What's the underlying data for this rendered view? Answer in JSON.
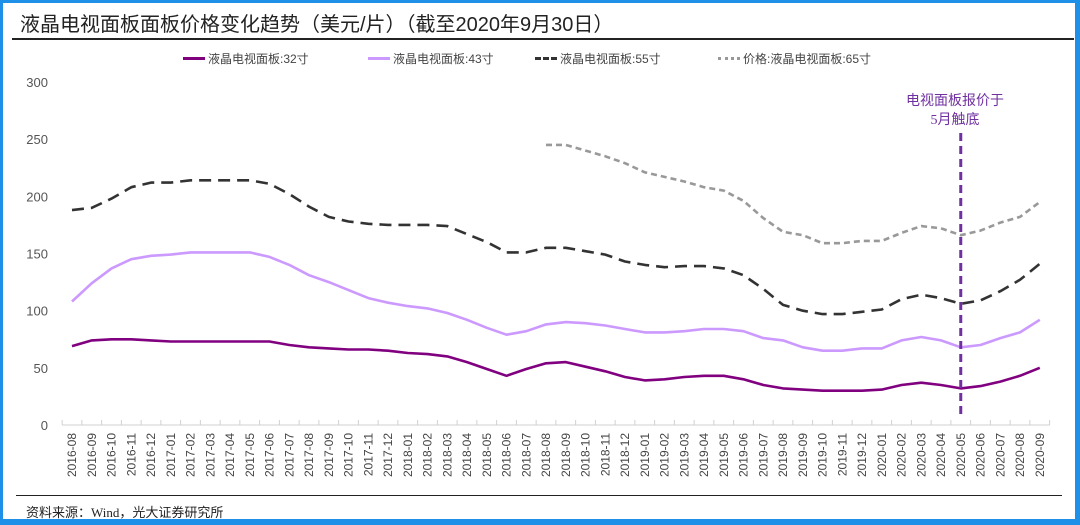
{
  "title": "液晶电视面板面板价格变化趋势（美元/片）（截至2020年9月30日）",
  "source": "资料来源：Wind，光大证券研究所",
  "annotation": {
    "line1": "电视面板报价于",
    "line2": "5月触底",
    "at_category": "2020-05",
    "color": "#7030a0"
  },
  "legend": [
    {
      "label": "液晶电视面板:32寸",
      "color": "#800080",
      "style": "solid"
    },
    {
      "label": "液晶电视面板:43寸",
      "color": "#cc99ff",
      "style": "solid"
    },
    {
      "label": "液晶电视面板:55寸",
      "color": "#333333",
      "style": "dashed"
    },
    {
      "label": "价格:液晶电视面板:65寸",
      "color": "#999999",
      "style": "dotted"
    }
  ],
  "chart_data": {
    "type": "line",
    "title": "液晶电视面板面板价格变化趋势（美元/片）（截至2020年9月30日）",
    "xlabel": "",
    "ylabel": "美元/片",
    "ylim": [
      0,
      300
    ],
    "yticks": [
      0,
      50,
      100,
      150,
      200,
      250,
      300
    ],
    "grid": false,
    "legend_position": "top",
    "categories": [
      "2016-08",
      "2016-09",
      "2016-10",
      "2016-11",
      "2016-12",
      "2017-01",
      "2017-02",
      "2017-03",
      "2017-04",
      "2017-05",
      "2017-06",
      "2017-07",
      "2017-08",
      "2017-09",
      "2017-10",
      "2017-11",
      "2017-12",
      "2018-01",
      "2018-02",
      "2018-03",
      "2018-04",
      "2018-05",
      "2018-06",
      "2018-07",
      "2018-08",
      "2018-09",
      "2018-10",
      "2018-11",
      "2018-12",
      "2019-01",
      "2019-02",
      "2019-03",
      "2019-04",
      "2019-05",
      "2019-06",
      "2019-07",
      "2019-08",
      "2019-09",
      "2019-10",
      "2019-11",
      "2019-12",
      "2020-01",
      "2020-02",
      "2020-03",
      "2020-04",
      "2020-05",
      "2020-06",
      "2020-07",
      "2020-08",
      "2020-09"
    ],
    "series": [
      {
        "name": "液晶电视面板:32寸",
        "color": "#800080",
        "style": "solid",
        "values": [
          69,
          74,
          75,
          75,
          74,
          73,
          73,
          73,
          73,
          73,
          73,
          70,
          68,
          67,
          66,
          66,
          65,
          63,
          62,
          60,
          55,
          49,
          43,
          49,
          54,
          55,
          51,
          47,
          42,
          39,
          40,
          42,
          43,
          43,
          40,
          35,
          32,
          31,
          30,
          30,
          30,
          31,
          35,
          37,
          35,
          32,
          34,
          38,
          43,
          50
        ]
      },
      {
        "name": "液晶电视面板:43寸",
        "color": "#cc99ff",
        "style": "solid",
        "values": [
          108,
          124,
          137,
          145,
          148,
          149,
          151,
          151,
          151,
          151,
          147,
          140,
          131,
          125,
          118,
          111,
          107,
          104,
          102,
          98,
          92,
          85,
          79,
          82,
          88,
          90,
          89,
          87,
          84,
          81,
          81,
          82,
          84,
          84,
          82,
          76,
          74,
          68,
          65,
          65,
          67,
          67,
          74,
          77,
          74,
          68,
          70,
          76,
          81,
          92
        ]
      },
      {
        "name": "液晶电视面板:55寸",
        "color": "#333333",
        "style": "dashed",
        "values": [
          188,
          190,
          198,
          208,
          212,
          212,
          214,
          214,
          214,
          214,
          211,
          202,
          191,
          182,
          178,
          176,
          175,
          175,
          175,
          174,
          167,
          160,
          151,
          151,
          155,
          155,
          152,
          149,
          143,
          140,
          138,
          139,
          139,
          137,
          131,
          119,
          105,
          100,
          97,
          97,
          99,
          101,
          110,
          114,
          111,
          106,
          109,
          117,
          127,
          141
        ]
      },
      {
        "name": "价格:液晶电视面板:65寸",
        "color": "#999999",
        "style": "dotted",
        "values": [
          null,
          null,
          null,
          null,
          null,
          null,
          null,
          null,
          null,
          null,
          null,
          null,
          null,
          null,
          null,
          null,
          null,
          null,
          null,
          null,
          null,
          null,
          null,
          null,
          245,
          245,
          240,
          235,
          229,
          221,
          217,
          213,
          208,
          205,
          196,
          181,
          169,
          166,
          159,
          159,
          161,
          161,
          168,
          174,
          172,
          166,
          170,
          177,
          182,
          195
        ]
      }
    ]
  }
}
